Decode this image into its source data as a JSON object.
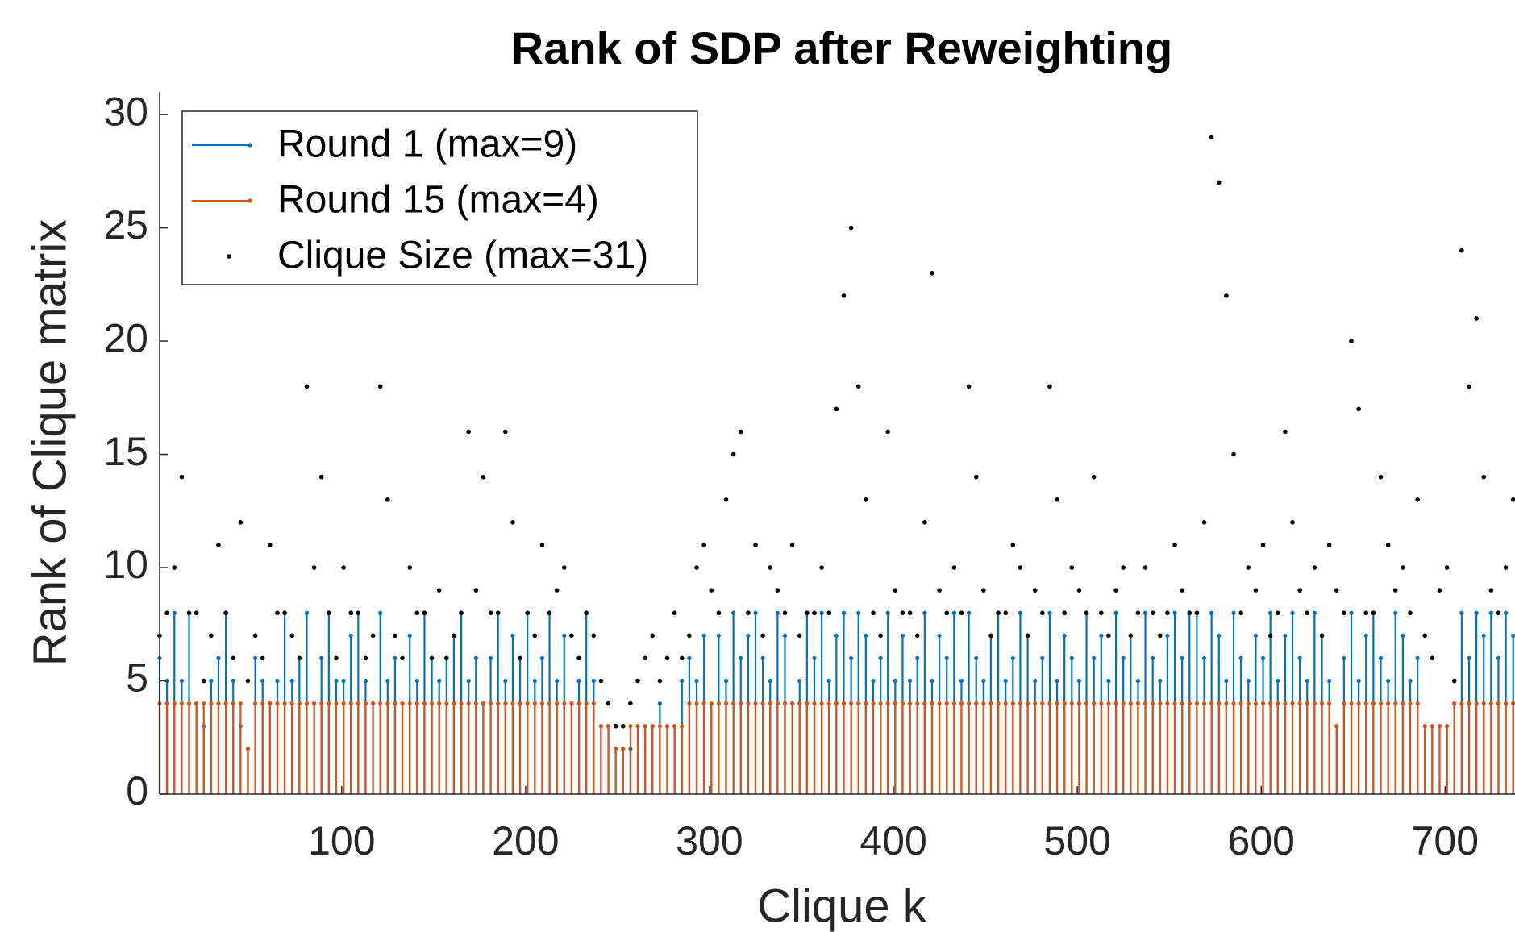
{
  "chart_data": {
    "type": "stem",
    "title": "Rank of SDP after Reweighting",
    "x_label": "Clique k",
    "y_label": "Rank of Clique matrix",
    "xlim": [
      1,
      738
    ],
    "ylim": [
      0,
      31
    ],
    "xticks": [
      100,
      200,
      300,
      400,
      500,
      600,
      700
    ],
    "yticks": [
      0,
      5,
      10,
      15,
      20,
      25,
      30
    ],
    "legend": "top-left",
    "x": [
      1,
      5,
      9,
      13,
      17,
      21,
      25,
      29,
      33,
      37,
      41,
      45,
      49,
      53,
      57,
      61,
      65,
      69,
      73,
      77,
      81,
      85,
      89,
      93,
      97,
      101,
      105,
      109,
      113,
      117,
      121,
      125,
      129,
      133,
      137,
      141,
      145,
      149,
      153,
      157,
      161,
      165,
      169,
      173,
      177,
      181,
      185,
      189,
      193,
      197,
      201,
      205,
      209,
      213,
      217,
      221,
      225,
      229,
      233,
      237,
      241,
      245,
      249,
      253,
      257,
      261,
      265,
      269,
      273,
      277,
      281,
      285,
      289,
      293,
      297,
      301,
      305,
      309,
      313,
      317,
      321,
      325,
      329,
      333,
      337,
      341,
      345,
      349,
      353,
      357,
      361,
      365,
      369,
      373,
      377,
      381,
      385,
      389,
      393,
      397,
      401,
      405,
      409,
      413,
      417,
      421,
      425,
      429,
      433,
      437,
      441,
      445,
      449,
      453,
      457,
      461,
      465,
      469,
      473,
      477,
      481,
      485,
      489,
      493,
      497,
      501,
      505,
      509,
      513,
      517,
      521,
      525,
      529,
      533,
      537,
      541,
      545,
      549,
      553,
      557,
      561,
      565,
      569,
      573,
      577,
      581,
      585,
      589,
      593,
      597,
      601,
      605,
      609,
      613,
      617,
      621,
      625,
      629,
      633,
      637,
      641,
      645,
      649,
      653,
      657,
      661,
      665,
      669,
      673,
      677,
      681,
      685,
      689,
      693,
      697,
      701,
      705,
      709,
      713,
      717,
      721,
      725,
      729,
      733,
      737
    ],
    "series": [
      {
        "name": "Round 1 (max=9)",
        "color": "#0072BD",
        "kind": "stem",
        "values": [
          6,
          5,
          8,
          5,
          8,
          4,
          3,
          5,
          6,
          8,
          5,
          3,
          2,
          6,
          5,
          4,
          5,
          8,
          5,
          6,
          8,
          4,
          6,
          8,
          5,
          5,
          7,
          8,
          5,
          4,
          8,
          5,
          6,
          4,
          7,
          5,
          8,
          6,
          5,
          6,
          7,
          8,
          5,
          6,
          4,
          6,
          8,
          5,
          7,
          6,
          8,
          5,
          6,
          8,
          5,
          7,
          4,
          5,
          8,
          5,
          3,
          3,
          2,
          2,
          2,
          3,
          3,
          3,
          4,
          3,
          3,
          5,
          6,
          5,
          7,
          4,
          7,
          5,
          8,
          6,
          7,
          8,
          6,
          5,
          8,
          7,
          4,
          5,
          8,
          6,
          8,
          5,
          7,
          8,
          6,
          8,
          7,
          5,
          6,
          8,
          5,
          7,
          5,
          6,
          8,
          5,
          7,
          6,
          8,
          5,
          8,
          6,
          5,
          7,
          8,
          5,
          6,
          8,
          7,
          5,
          6,
          8,
          5,
          7,
          6,
          5,
          8,
          6,
          7,
          5,
          8,
          6,
          7,
          5,
          8,
          6,
          5,
          7,
          8,
          6,
          8,
          8,
          6,
          8,
          7,
          5,
          8,
          6,
          5,
          7,
          6,
          8,
          5,
          7,
          8,
          6,
          5,
          8,
          7,
          5,
          3,
          6,
          8,
          5,
          7,
          8,
          6,
          5,
          8,
          7,
          5,
          6,
          3,
          3,
          3,
          3,
          4,
          8,
          6,
          8,
          7,
          8,
          6,
          8,
          7
        ]
      },
      {
        "name": "Round 15 (max=4)",
        "color": "#D95319",
        "kind": "stem",
        "values": [
          4,
          4,
          4,
          4,
          4,
          4,
          4,
          4,
          4,
          4,
          4,
          4,
          2,
          4,
          4,
          4,
          4,
          4,
          4,
          4,
          4,
          4,
          4,
          4,
          4,
          4,
          4,
          4,
          4,
          4,
          4,
          4,
          4,
          4,
          4,
          4,
          4,
          4,
          4,
          4,
          4,
          4,
          4,
          4,
          4,
          4,
          4,
          4,
          4,
          4,
          4,
          4,
          4,
          4,
          4,
          4,
          4,
          4,
          4,
          4,
          3,
          3,
          2,
          2,
          3,
          3,
          3,
          3,
          3,
          3,
          3,
          3,
          4,
          4,
          4,
          4,
          4,
          4,
          4,
          4,
          4,
          4,
          4,
          4,
          4,
          4,
          4,
          4,
          4,
          4,
          4,
          4,
          4,
          4,
          4,
          4,
          4,
          4,
          4,
          4,
          4,
          4,
          4,
          4,
          4,
          4,
          4,
          4,
          4,
          4,
          4,
          4,
          4,
          4,
          4,
          4,
          4,
          4,
          4,
          4,
          4,
          4,
          4,
          4,
          4,
          4,
          4,
          4,
          4,
          4,
          4,
          4,
          4,
          4,
          4,
          4,
          4,
          4,
          4,
          4,
          4,
          4,
          4,
          4,
          4,
          4,
          4,
          4,
          4,
          4,
          4,
          4,
          4,
          4,
          4,
          4,
          4,
          4,
          4,
          4,
          3,
          4,
          4,
          4,
          4,
          4,
          4,
          4,
          4,
          4,
          4,
          4,
          3,
          3,
          3,
          3,
          4,
          4,
          4,
          4,
          4,
          4,
          4,
          4,
          4
        ]
      },
      {
        "name": "Clique Size (max=31)",
        "color": "#000000",
        "kind": "dot",
        "values": [
          7,
          8,
          10,
          14,
          8,
          8,
          5,
          7,
          11,
          8,
          6,
          12,
          5,
          7,
          6,
          11,
          8,
          8,
          7,
          6,
          18,
          10,
          14,
          8,
          6,
          10,
          8,
          8,
          6,
          7,
          18,
          13,
          7,
          6,
          10,
          8,
          8,
          6,
          9,
          6,
          7,
          8,
          16,
          9,
          14,
          8,
          8,
          16,
          12,
          6,
          8,
          7,
          11,
          8,
          9,
          10,
          7,
          6,
          8,
          7,
          5,
          4,
          3,
          3,
          4,
          5,
          6,
          7,
          5,
          6,
          8,
          6,
          7,
          10,
          11,
          9,
          8,
          13,
          15,
          16,
          8,
          11,
          7,
          10,
          9,
          8,
          11,
          7,
          8,
          8,
          10,
          8,
          17,
          22,
          25,
          18,
          13,
          8,
          7,
          16,
          9,
          8,
          8,
          7,
          12,
          23,
          9,
          8,
          10,
          8,
          18,
          14,
          9,
          7,
          8,
          8,
          11,
          10,
          7,
          9,
          8,
          18,
          13,
          8,
          10,
          9,
          8,
          14,
          8,
          7,
          9,
          10,
          7,
          8,
          10,
          8,
          7,
          8,
          11,
          9,
          8,
          8,
          12,
          29,
          27,
          22,
          15,
          8,
          10,
          9,
          11,
          7,
          8,
          16,
          12,
          9,
          8,
          10,
          7,
          11,
          9,
          8,
          20,
          17,
          8,
          8,
          14,
          11,
          9,
          10,
          8,
          13,
          7,
          6,
          9,
          10,
          5,
          24,
          18,
          21,
          14,
          9,
          8,
          10,
          13
        ]
      }
    ]
  }
}
